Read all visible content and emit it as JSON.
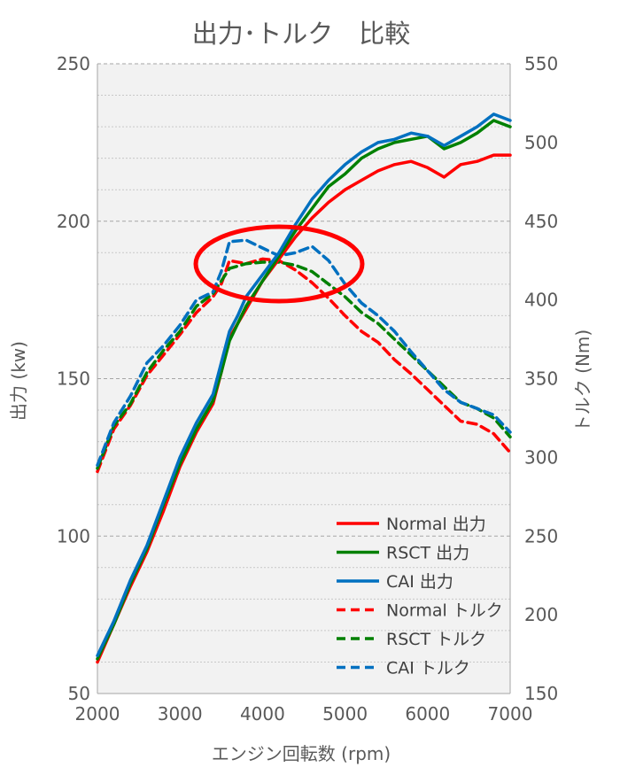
{
  "chart_data": {
    "type": "line",
    "title": "出力･トルク　比較",
    "xlabel": "エンジン回転数 (rpm)",
    "ylabel_left": "出力 (kw)",
    "ylabel_right": "トルク (Nm)",
    "xlim": [
      2000,
      7000
    ],
    "ylim_left": [
      50,
      250
    ],
    "ylim_right": [
      150,
      550
    ],
    "x_ticks": [
      "2000",
      "3000",
      "4000",
      "5000",
      "6000",
      "7000"
    ],
    "y_left_ticks": [
      "50",
      "100",
      "150",
      "200",
      "250"
    ],
    "y_right_ticks": [
      "150",
      "200",
      "250",
      "300",
      "350",
      "400",
      "450",
      "500",
      "550"
    ],
    "grid": true,
    "legend_position": "bottom-right",
    "annotation": "red ellipse around torque peak region near 4200 rpm",
    "series": [
      {
        "name": "Normal 出力",
        "axis": "left",
        "style": "solid",
        "color": "#ff0000",
        "points": [
          [
            2000,
            60
          ],
          [
            2200,
            72
          ],
          [
            2400,
            84
          ],
          [
            2600,
            95
          ],
          [
            2800,
            108
          ],
          [
            3000,
            122
          ],
          [
            3200,
            133
          ],
          [
            3400,
            142
          ],
          [
            3500,
            152
          ],
          [
            3600,
            163
          ],
          [
            3800,
            172
          ],
          [
            4000,
            181
          ],
          [
            4200,
            188
          ],
          [
            4400,
            195
          ],
          [
            4600,
            201
          ],
          [
            4800,
            206
          ],
          [
            5000,
            210
          ],
          [
            5200,
            213
          ],
          [
            5400,
            216
          ],
          [
            5600,
            218
          ],
          [
            5800,
            219
          ],
          [
            6000,
            217
          ],
          [
            6200,
            214
          ],
          [
            6400,
            218
          ],
          [
            6600,
            219
          ],
          [
            6800,
            221
          ],
          [
            7000,
            221
          ]
        ]
      },
      {
        "name": "RSCT 出力",
        "axis": "left",
        "style": "solid",
        "color": "#008000",
        "points": [
          [
            2000,
            61
          ],
          [
            2200,
            72
          ],
          [
            2400,
            85
          ],
          [
            2600,
            96
          ],
          [
            2800,
            110
          ],
          [
            3000,
            123
          ],
          [
            3200,
            134
          ],
          [
            3400,
            143
          ],
          [
            3500,
            152
          ],
          [
            3600,
            162
          ],
          [
            3800,
            173
          ],
          [
            4000,
            181
          ],
          [
            4200,
            189
          ],
          [
            4400,
            197
          ],
          [
            4600,
            204
          ],
          [
            4800,
            211
          ],
          [
            5000,
            215
          ],
          [
            5200,
            220
          ],
          [
            5400,
            223
          ],
          [
            5600,
            225
          ],
          [
            5800,
            226
          ],
          [
            6000,
            227
          ],
          [
            6200,
            223
          ],
          [
            6400,
            225
          ],
          [
            6600,
            228
          ],
          [
            6800,
            232
          ],
          [
            7000,
            230
          ]
        ]
      },
      {
        "name": "CAI 出力",
        "axis": "left",
        "style": "solid",
        "color": "#0070c0",
        "points": [
          [
            2000,
            62
          ],
          [
            2200,
            73
          ],
          [
            2400,
            86
          ],
          [
            2600,
            97
          ],
          [
            2800,
            111
          ],
          [
            3000,
            125
          ],
          [
            3200,
            136
          ],
          [
            3400,
            145
          ],
          [
            3500,
            155
          ],
          [
            3600,
            165
          ],
          [
            3700,
            170
          ],
          [
            3800,
            176
          ],
          [
            4000,
            183
          ],
          [
            4200,
            190
          ],
          [
            4400,
            199
          ],
          [
            4600,
            207
          ],
          [
            4800,
            213
          ],
          [
            5000,
            218
          ],
          [
            5200,
            222
          ],
          [
            5400,
            225
          ],
          [
            5600,
            226
          ],
          [
            5800,
            228
          ],
          [
            6000,
            227
          ],
          [
            6200,
            224
          ],
          [
            6400,
            227
          ],
          [
            6600,
            230
          ],
          [
            6800,
            234
          ],
          [
            7000,
            232
          ]
        ]
      },
      {
        "name": "Normal トルク",
        "axis": "right",
        "style": "dashed",
        "color": "#ff0000",
        "points": [
          [
            2000,
            291
          ],
          [
            2200,
            318
          ],
          [
            2400,
            333
          ],
          [
            2600,
            352
          ],
          [
            2800,
            365
          ],
          [
            3000,
            378
          ],
          [
            3200,
            392
          ],
          [
            3400,
            402
          ],
          [
            3500,
            410
          ],
          [
            3600,
            425
          ],
          [
            3800,
            423
          ],
          [
            4000,
            426
          ],
          [
            4200,
            425
          ],
          [
            4400,
            419
          ],
          [
            4600,
            411
          ],
          [
            4800,
            401
          ],
          [
            5000,
            390
          ],
          [
            5200,
            380
          ],
          [
            5400,
            373
          ],
          [
            5600,
            362
          ],
          [
            5800,
            353
          ],
          [
            6000,
            343
          ],
          [
            6200,
            333
          ],
          [
            6400,
            323
          ],
          [
            6600,
            321
          ],
          [
            6800,
            315
          ],
          [
            7000,
            303
          ]
        ]
      },
      {
        "name": "RSCT トルク",
        "axis": "right",
        "style": "dashed",
        "color": "#008000",
        "points": [
          [
            2000,
            293
          ],
          [
            2200,
            320
          ],
          [
            2400,
            334
          ],
          [
            2600,
            354
          ],
          [
            2800,
            368
          ],
          [
            3000,
            380
          ],
          [
            3200,
            396
          ],
          [
            3400,
            404
          ],
          [
            3500,
            412
          ],
          [
            3600,
            420
          ],
          [
            3800,
            423
          ],
          [
            4000,
            424
          ],
          [
            4200,
            424
          ],
          [
            4400,
            422
          ],
          [
            4600,
            418
          ],
          [
            4800,
            410
          ],
          [
            5000,
            402
          ],
          [
            5200,
            392
          ],
          [
            5400,
            385
          ],
          [
            5600,
            375
          ],
          [
            5800,
            365
          ],
          [
            6000,
            355
          ],
          [
            6200,
            345
          ],
          [
            6400,
            335
          ],
          [
            6600,
            331
          ],
          [
            6800,
            325
          ],
          [
            7000,
            313
          ]
        ]
      },
      {
        "name": "CAI トルク",
        "axis": "right",
        "style": "dashed",
        "color": "#0070c0",
        "points": [
          [
            2000,
            295
          ],
          [
            2200,
            322
          ],
          [
            2400,
            339
          ],
          [
            2600,
            360
          ],
          [
            2800,
            371
          ],
          [
            3000,
            384
          ],
          [
            3200,
            400
          ],
          [
            3400,
            405
          ],
          [
            3500,
            418
          ],
          [
            3600,
            437
          ],
          [
            3800,
            438
          ],
          [
            4000,
            433
          ],
          [
            4200,
            428
          ],
          [
            4400,
            430
          ],
          [
            4600,
            434
          ],
          [
            4800,
            425
          ],
          [
            5000,
            410
          ],
          [
            5200,
            398
          ],
          [
            5400,
            390
          ],
          [
            5600,
            380
          ],
          [
            5800,
            367
          ],
          [
            6000,
            355
          ],
          [
            6200,
            343
          ],
          [
            6400,
            335
          ],
          [
            6600,
            331
          ],
          [
            6800,
            327
          ],
          [
            7000,
            316
          ]
        ]
      }
    ]
  }
}
